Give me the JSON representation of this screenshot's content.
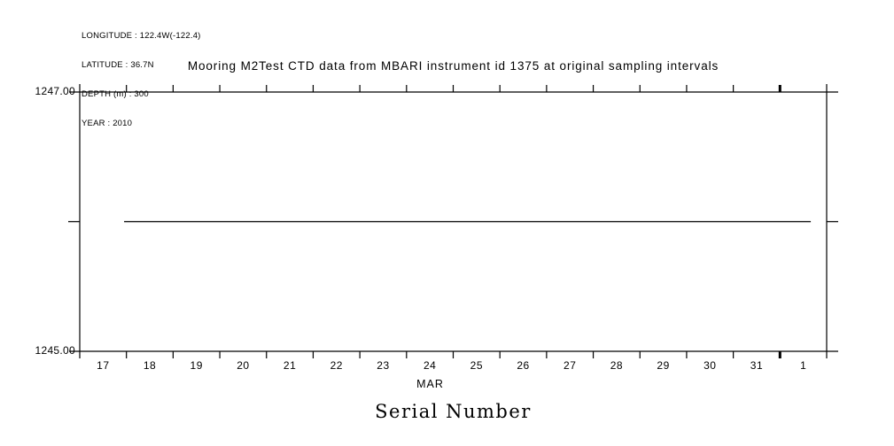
{
  "page": {
    "background": "#ffffff",
    "ink_color": "#000000"
  },
  "meta": {
    "lines": [
      "LONGITUDE : 122.4W(-122.4)",
      "LATITUDE : 36.7N",
      "DEPTH (m) : 300",
      "YEAR : 2010"
    ]
  },
  "chart_data": {
    "type": "line",
    "title": "Mooring M2Test CTD data from MBARI instrument id 1375 at original sampling intervals",
    "bottom_label": "Serial Number",
    "line_color": "#000000",
    "background": "#ffffff",
    "grid": false,
    "frame": "closed box with outward ticks on all four sides",
    "x_axis": {
      "unit": "day of month (1 unit = 1 day, 0 = start of Mar 17)",
      "interval_count": 16,
      "day_labels": [
        "17",
        "18",
        "19",
        "20",
        "21",
        "22",
        "23",
        "24",
        "25",
        "26",
        "27",
        "28",
        "29",
        "30",
        "31",
        "1"
      ],
      "month_label": "MAR",
      "month_boundary_tick_index": 15,
      "tick_style": "ticks at day boundaries, labels centered between ticks, bold tick at month change"
    },
    "y_axis": {
      "limits": [
        1245,
        1247
      ],
      "ticks": [
        1245,
        1246,
        1247
      ],
      "top_label": "1247.00",
      "bottom_label": "1245.00",
      "labeled_ticks_only": [
        1245,
        1247
      ]
    },
    "series": [
      {
        "name": "Serial Number",
        "value": 1246.0,
        "x_start": 0.95,
        "x_end": 15.66,
        "points": [
          [
            0.95,
            1246.0
          ],
          [
            15.66,
            1246.0
          ]
        ]
      }
    ]
  }
}
